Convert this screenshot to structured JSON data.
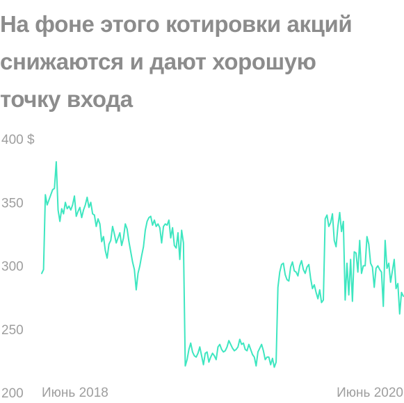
{
  "title_lines": [
    "На фоне этого котировки акций",
    "снижаются и дают хорошую",
    "точку входа"
  ],
  "chart_data": {
    "type": "line",
    "title": "На фоне этого котировки акций снижаются и дают хорошую точку входа",
    "y_tick_labels": [
      "400 $",
      "350",
      "300",
      "250",
      "200"
    ],
    "y_ticks": [
      400,
      350,
      300,
      250,
      200
    ],
    "ylim": [
      200,
      400
    ],
    "x_tick_labels": [
      "Июнь 2018",
      "Июнь 2020"
    ],
    "grid": false,
    "line_color": "#3ee6c0",
    "values": [
      294,
      297,
      356,
      348,
      352,
      356,
      360,
      361,
      382,
      344,
      335,
      345,
      341,
      350,
      345,
      347,
      344,
      348,
      355,
      339,
      343,
      346,
      338,
      344,
      348,
      354,
      346,
      350,
      341,
      340,
      331,
      337,
      333,
      319,
      323,
      312,
      306,
      317,
      320,
      331,
      325,
      318,
      322,
      326,
      316,
      322,
      333,
      329,
      319,
      311,
      303,
      297,
      281,
      294,
      300,
      308,
      315,
      328,
      335,
      338,
      339,
      332,
      336,
      331,
      333,
      330,
      318,
      331,
      333,
      332,
      336,
      322,
      330,
      316,
      314,
      326,
      305,
      328,
      318,
      221,
      226,
      234,
      239,
      232,
      229,
      228,
      231,
      236,
      229,
      222,
      231,
      232,
      224,
      228,
      231,
      229,
      226,
      236,
      238,
      234,
      232,
      233,
      236,
      241,
      238,
      235,
      233,
      234,
      236,
      242,
      238,
      239,
      234,
      233,
      238,
      234,
      230,
      228,
      221,
      232,
      235,
      238,
      233,
      226,
      228,
      228,
      222,
      227,
      220,
      224,
      283,
      295,
      301,
      302,
      293,
      289,
      288,
      299,
      303,
      296,
      295,
      292,
      300,
      304,
      297,
      294,
      299,
      301,
      290,
      282,
      285,
      279,
      274,
      281,
      271,
      273,
      337,
      340,
      331,
      334,
      341,
      320,
      315,
      331,
      342,
      327,
      335,
      273,
      302,
      277,
      305,
      272,
      311,
      310,
      295,
      320,
      294,
      300,
      300,
      323,
      317,
      302,
      299,
      283,
      298,
      300,
      297,
      295,
      268,
      320,
      298,
      302,
      287,
      296,
      305,
      282,
      286,
      262,
      279,
      276
    ]
  }
}
